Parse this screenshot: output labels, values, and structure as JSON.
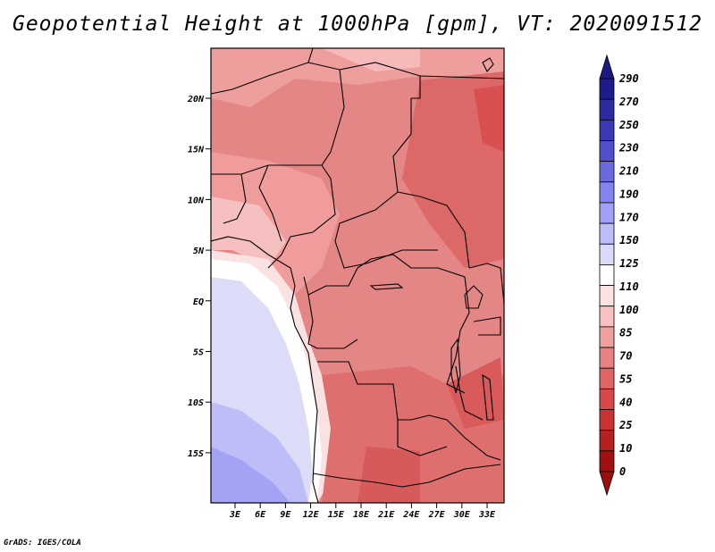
{
  "title": "Geopotential Height at 1000hPa [gpm], VT: 2020091512",
  "credit": "GrADS: IGES/COLA",
  "map": {
    "lat_labels": [
      "20N",
      "15N",
      "10N",
      "5N",
      "EQ",
      "5S",
      "10S",
      "15S"
    ],
    "lon_labels": [
      "3E",
      "6E",
      "9E",
      "12E",
      "15E",
      "18E",
      "21E",
      "24E",
      "27E",
      "30E",
      "33E"
    ]
  },
  "colorbar": {
    "levels": [
      "290",
      "270",
      "250",
      "230",
      "210",
      "190",
      "170",
      "150",
      "125",
      "110",
      "100",
      "85",
      "70",
      "55",
      "40",
      "25",
      "10",
      "0"
    ],
    "colors": [
      "#1c1c8c",
      "#2b2ba3",
      "#3a3ab8",
      "#5050cc",
      "#6a6ae0",
      "#8484f0",
      "#a0a0f8",
      "#bdbdfb",
      "#dadaf8",
      "#ffffff",
      "#fde0e0",
      "#f8c0c0",
      "#f1a0a0",
      "#e88282",
      "#e06464",
      "#d94848",
      "#cc3232",
      "#b82020",
      "#a01010"
    ],
    "top_cap": "#1a1a80",
    "bottom_cap": "#9a1010"
  }
}
